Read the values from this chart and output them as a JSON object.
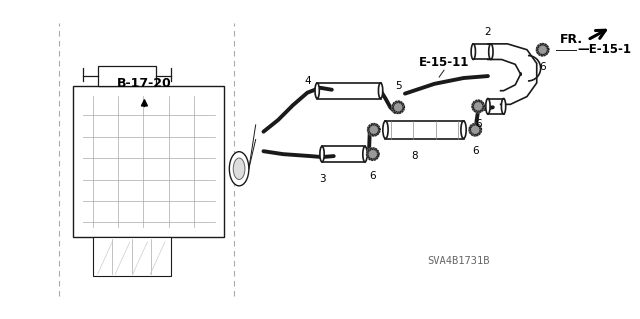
{
  "bg_color": "#ffffff",
  "fig_width": 6.4,
  "fig_height": 3.19,
  "dpi": 100,
  "watermark": "SVA4B1731B",
  "fr_label": "FR.",
  "ref_label": "B-17-20",
  "line_color": "#1a1a1a",
  "label_color": "#111111"
}
